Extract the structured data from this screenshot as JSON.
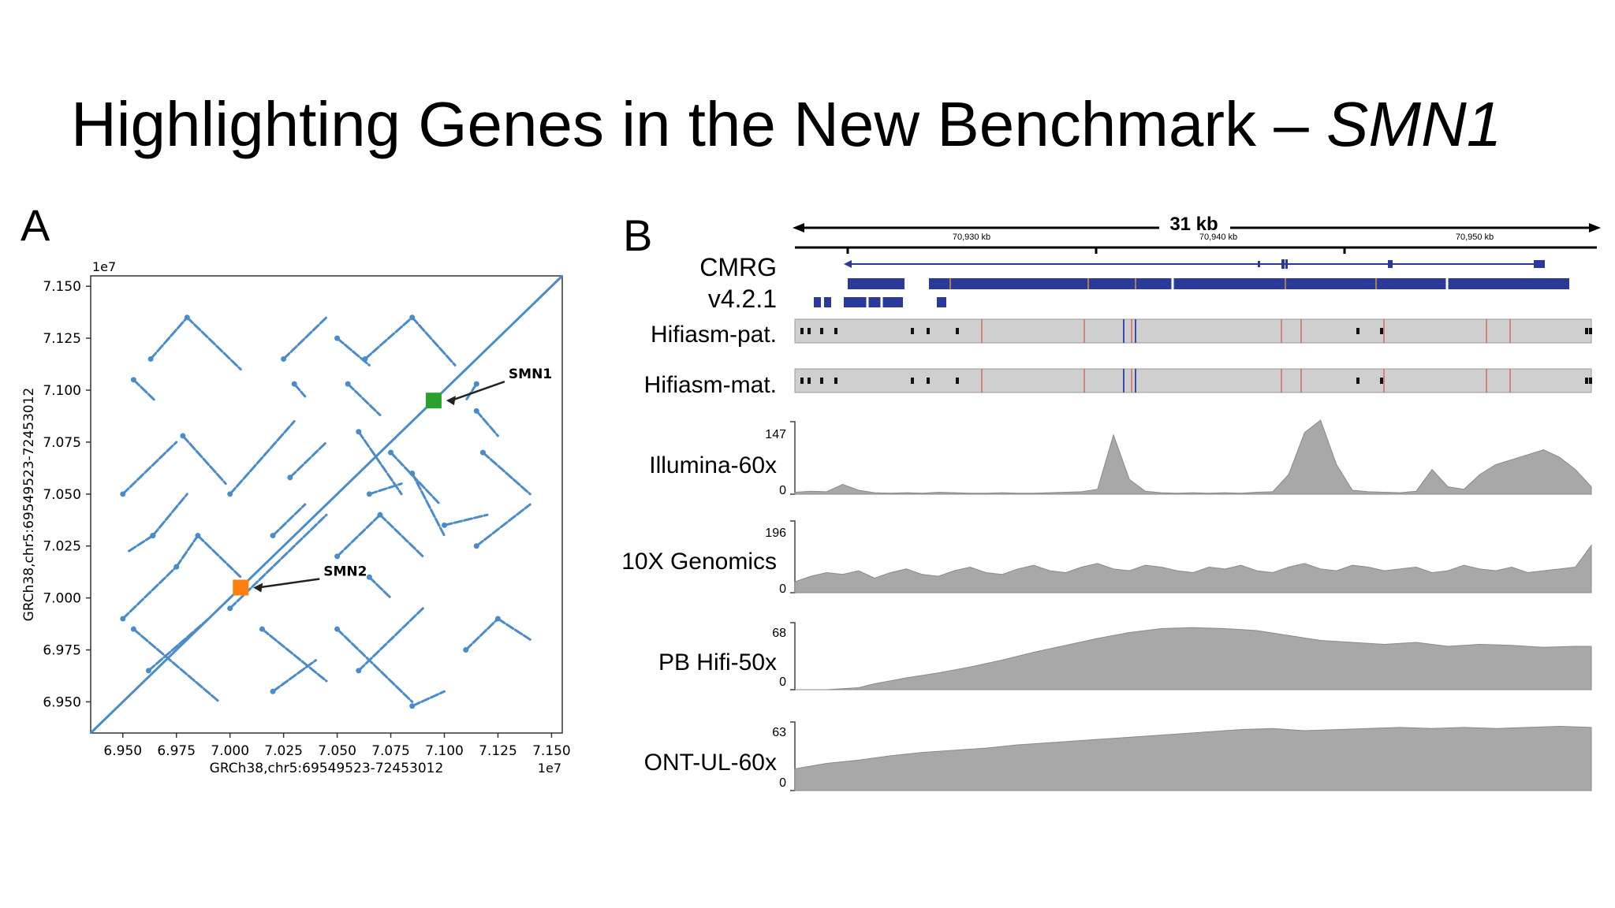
{
  "slide": {
    "title_main": "Highlighting Genes in the New Benchmark – ",
    "title_gene": "SMN1"
  },
  "panel_a": {
    "letter": "A",
    "offset_label": "1e7",
    "offset_label_x": "1e7",
    "xlabel": "GRCh38,chr5:69549523-72453012",
    "ylabel": "GRCh38,chr5:69549523-72453012",
    "annotations": [
      {
        "label": "SMN1",
        "x": 7.095,
        "y": 7.095,
        "color": "#2ca02c"
      },
      {
        "label": "SMN2",
        "x": 7.005,
        "y": 7.005,
        "color": "#ff7f0e"
      }
    ]
  },
  "panel_b": {
    "letter": "B",
    "scale_label": "31 kb",
    "coord_labels": [
      "70,930 kb",
      "70,940 kb",
      "70,950 kb"
    ],
    "tracks": [
      {
        "name_line1": "CMRG",
        "name_line2": "v4.2.1"
      },
      {
        "name": "Hifiasm-pat."
      },
      {
        "name": "Hifiasm-mat."
      },
      {
        "name": "Illumina-60x",
        "max": "147",
        "min": "0"
      },
      {
        "name": "10X Genomics",
        "max": "196",
        "min": "0"
      },
      {
        "name": "PB Hifi-50x",
        "max": "68",
        "min": "0"
      },
      {
        "name": "ONT-UL-60x",
        "max": "63",
        "min": "0"
      }
    ]
  },
  "chart_data": [
    {
      "type": "scatter",
      "title": "",
      "xlabel": "GRCh38,chr5:69549523-72453012",
      "ylabel": "GRCh38,chr5:69549523-72453012",
      "xlim": [
        6.935,
        7.155
      ],
      "ylim": [
        6.935,
        7.155
      ],
      "xticks": [
        "6.950",
        "6.975",
        "7.000",
        "7.025",
        "7.050",
        "7.075",
        "7.100",
        "7.125",
        "7.150"
      ],
      "yticks": [
        "6.950",
        "6.975",
        "7.000",
        "7.025",
        "7.050",
        "7.075",
        "7.100",
        "7.125",
        "7.150"
      ],
      "series_color": "#4a8cc9",
      "diagonal": [
        [
          6.935,
          6.935
        ],
        [
          7.155,
          7.155
        ]
      ],
      "segments": [
        [
          [
            6.963,
            7.115
          ],
          [
            6.98,
            7.135
          ]
        ],
        [
          [
            6.98,
            7.135
          ],
          [
            7.005,
            7.11
          ]
        ],
        [
          [
            7.025,
            7.115
          ],
          [
            7.045,
            7.135
          ]
        ],
        [
          [
            7.05,
            7.125
          ],
          [
            7.065,
            7.112
          ]
        ],
        [
          [
            7.063,
            7.115
          ],
          [
            7.085,
            7.135
          ]
        ],
        [
          [
            7.085,
            7.135
          ],
          [
            7.105,
            7.112
          ]
        ],
        [
          [
            6.955,
            7.105
          ],
          [
            6.965,
            7.095
          ]
        ],
        [
          [
            7.055,
            7.103
          ],
          [
            7.07,
            7.088
          ]
        ],
        [
          [
            7.03,
            7.103
          ],
          [
            7.035,
            7.097
          ]
        ],
        [
          [
            7.115,
            7.103
          ],
          [
            7.11,
            7.095
          ]
        ],
        [
          [
            6.95,
            7.05
          ],
          [
            6.975,
            7.075
          ]
        ],
        [
          [
            6.978,
            7.078
          ],
          [
            6.998,
            7.055
          ]
        ],
        [
          [
            6.964,
            7.03
          ],
          [
            6.952,
            7.022
          ]
        ],
        [
          [
            6.964,
            7.03
          ],
          [
            6.98,
            7.05
          ]
        ],
        [
          [
            7.0,
            7.05
          ],
          [
            7.03,
            7.085
          ]
        ],
        [
          [
            7.028,
            7.058
          ],
          [
            7.045,
            7.075
          ]
        ],
        [
          [
            7.06,
            7.08
          ],
          [
            7.08,
            7.05
          ]
        ],
        [
          [
            7.065,
            7.05
          ],
          [
            7.08,
            7.055
          ]
        ],
        [
          [
            7.118,
            7.07
          ],
          [
            7.14,
            7.05
          ]
        ],
        [
          [
            7.115,
            7.09
          ],
          [
            7.125,
            7.078
          ]
        ],
        [
          [
            7.075,
            7.07
          ],
          [
            7.098,
            7.045
          ]
        ],
        [
          [
            7.085,
            7.06
          ],
          [
            7.1,
            7.03
          ]
        ],
        [
          [
            6.95,
            6.99
          ],
          [
            6.975,
            7.015
          ]
        ],
        [
          [
            6.975,
            7.015
          ],
          [
            6.985,
            7.03
          ]
        ],
        [
          [
            6.985,
            7.03
          ],
          [
            7.005,
            7.01
          ]
        ],
        [
          [
            7.0,
            6.995
          ],
          [
            7.045,
            7.04
          ]
        ],
        [
          [
            7.05,
            7.02
          ],
          [
            7.07,
            7.04
          ]
        ],
        [
          [
            7.07,
            7.04
          ],
          [
            7.09,
            7.02
          ]
        ],
        [
          [
            7.065,
            7.01
          ],
          [
            7.075,
            7.0
          ]
        ],
        [
          [
            7.115,
            7.025
          ],
          [
            7.14,
            7.045
          ]
        ],
        [
          [
            7.1,
            7.035
          ],
          [
            7.12,
            7.04
          ]
        ],
        [
          [
            7.02,
            7.03
          ],
          [
            7.035,
            7.045
          ]
        ],
        [
          [
            6.962,
            6.965
          ],
          [
            6.99,
            6.99
          ]
        ],
        [
          [
            6.955,
            6.985
          ],
          [
            6.995,
            6.95
          ]
        ],
        [
          [
            7.015,
            6.985
          ],
          [
            7.045,
            6.96
          ]
        ],
        [
          [
            7.05,
            6.985
          ],
          [
            7.085,
            6.95
          ]
        ],
        [
          [
            7.06,
            6.965
          ],
          [
            7.09,
            6.995
          ]
        ],
        [
          [
            7.11,
            6.975
          ],
          [
            7.125,
            6.99
          ]
        ],
        [
          [
            7.125,
            6.99
          ],
          [
            7.14,
            6.98
          ]
        ],
        [
          [
            7.085,
            6.948
          ],
          [
            7.1,
            6.955
          ]
        ],
        [
          [
            7.02,
            6.955
          ],
          [
            7.04,
            6.97
          ]
        ]
      ],
      "annotations": [
        {
          "label": "SMN1",
          "x": 7.095,
          "y": 7.095
        },
        {
          "label": "SMN2",
          "x": 7.005,
          "y": 7.005
        }
      ]
    },
    {
      "type": "area",
      "title": "",
      "series": [
        {
          "name": "Illumina-60x",
          "ymax": 147,
          "x": [
            0,
            2,
            4,
            6,
            8,
            10,
            12,
            14,
            16,
            18,
            20,
            22,
            24,
            26,
            28,
            30,
            32,
            34,
            36,
            38,
            40,
            42,
            44,
            46,
            48,
            50,
            52,
            54,
            56,
            58,
            60,
            62,
            64,
            66,
            68,
            70,
            72,
            74,
            76,
            78,
            80,
            82,
            84,
            86,
            88,
            90,
            92,
            94,
            96,
            98,
            100
          ],
          "values": [
            4,
            6,
            5,
            20,
            8,
            3,
            2,
            3,
            2,
            4,
            3,
            2,
            2,
            3,
            2,
            2,
            3,
            4,
            5,
            10,
            120,
            30,
            6,
            3,
            2,
            3,
            2,
            3,
            2,
            4,
            5,
            40,
            125,
            150,
            60,
            8,
            5,
            4,
            3,
            6,
            50,
            15,
            10,
            40,
            60,
            70,
            80,
            90,
            75,
            50,
            15
          ]
        },
        {
          "name": "10X Genomics",
          "ymax": 196,
          "x": [
            0,
            2,
            4,
            6,
            8,
            10,
            12,
            14,
            16,
            18,
            20,
            22,
            24,
            26,
            28,
            30,
            32,
            34,
            36,
            38,
            40,
            42,
            44,
            46,
            48,
            50,
            52,
            54,
            56,
            58,
            60,
            62,
            64,
            66,
            68,
            70,
            72,
            74,
            76,
            78,
            80,
            82,
            84,
            86,
            88,
            90,
            92,
            94,
            96,
            98,
            100
          ],
          "values": [
            30,
            45,
            55,
            50,
            60,
            40,
            55,
            65,
            50,
            45,
            60,
            70,
            55,
            50,
            65,
            75,
            60,
            55,
            70,
            80,
            65,
            60,
            75,
            70,
            60,
            55,
            70,
            65,
            75,
            60,
            55,
            70,
            80,
            65,
            60,
            75,
            70,
            60,
            65,
            70,
            55,
            60,
            75,
            65,
            60,
            70,
            55,
            60,
            65,
            70,
            130
          ]
        },
        {
          "name": "PB Hifi-50x",
          "ymax": 68,
          "x": [
            0,
            4,
            8,
            10,
            14,
            18,
            22,
            26,
            30,
            34,
            38,
            42,
            46,
            50,
            54,
            58,
            62,
            66,
            70,
            74,
            78,
            82,
            86,
            90,
            94,
            98,
            100
          ],
          "values": [
            0,
            0,
            2,
            6,
            12,
            17,
            23,
            30,
            38,
            45,
            52,
            58,
            62,
            63,
            62,
            60,
            55,
            50,
            48,
            46,
            48,
            44,
            46,
            45,
            43,
            44,
            44
          ]
        },
        {
          "name": "ONT-UL-60x",
          "ymax": 63,
          "x": [
            0,
            4,
            8,
            12,
            16,
            20,
            24,
            28,
            32,
            36,
            40,
            44,
            48,
            52,
            56,
            60,
            64,
            68,
            72,
            76,
            80,
            84,
            88,
            92,
            96,
            100
          ],
          "values": [
            20,
            25,
            28,
            32,
            35,
            37,
            39,
            42,
            44,
            46,
            48,
            50,
            52,
            54,
            56,
            57,
            55,
            56,
            57,
            58,
            57,
            58,
            57,
            58,
            59,
            58
          ]
        }
      ]
    }
  ]
}
